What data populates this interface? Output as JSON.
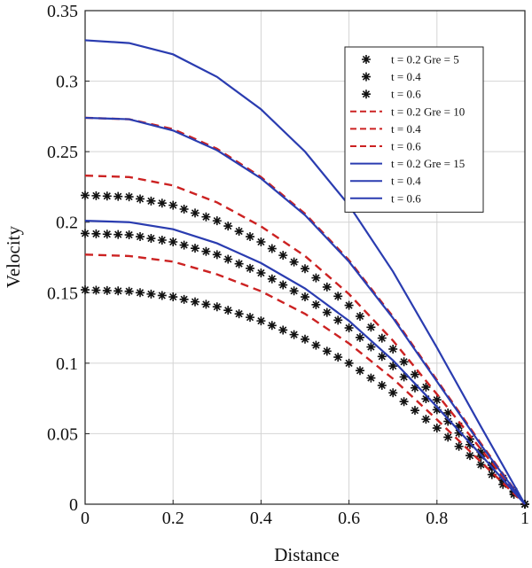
{
  "chart_data": {
    "type": "line",
    "xlabel": "Distance",
    "ylabel": "Velocity",
    "xlim": [
      0,
      1
    ],
    "ylim": [
      0,
      0.35
    ],
    "xticks": [
      "0",
      "0.2",
      "0.4",
      "0.6",
      "0.8",
      "1"
    ],
    "yticks": [
      "0",
      "0.05",
      "0.1",
      "0.15",
      "0.2",
      "0.25",
      "0.3",
      "0.35"
    ],
    "grid": true,
    "legend_position": "top-right",
    "colors": {
      "star": "#111111",
      "dashed": "#cc2222",
      "solid": "#2a3cb0"
    },
    "series": [
      {
        "name": "t = 0.2 Gre = 5",
        "style": "star",
        "x": [
          0,
          0.1,
          0.2,
          0.3,
          0.4,
          0.5,
          0.6,
          0.7,
          0.8,
          0.9,
          1.0
        ],
        "values": [
          0.219,
          0.218,
          0.212,
          0.201,
          0.186,
          0.167,
          0.141,
          0.11,
          0.074,
          0.037,
          0.0
        ]
      },
      {
        "name": "t = 0.4",
        "style": "star",
        "x": [
          0,
          0.1,
          0.2,
          0.3,
          0.4,
          0.5,
          0.6,
          0.7,
          0.8,
          0.9,
          1.0
        ],
        "values": [
          0.192,
          0.191,
          0.186,
          0.177,
          0.164,
          0.147,
          0.125,
          0.098,
          0.067,
          0.034,
          0.0
        ]
      },
      {
        "name": "t = 0.6",
        "style": "star",
        "x": [
          0,
          0.1,
          0.2,
          0.3,
          0.4,
          0.5,
          0.6,
          0.7,
          0.8,
          0.9,
          1.0
        ],
        "values": [
          0.152,
          0.151,
          0.147,
          0.14,
          0.13,
          0.117,
          0.1,
          0.079,
          0.054,
          0.028,
          0.0
        ]
      },
      {
        "name": "t = 0.2 Gre = 10",
        "style": "dashed",
        "x": [
          0,
          0.1,
          0.2,
          0.3,
          0.4,
          0.5,
          0.6,
          0.7,
          0.8,
          0.9,
          1.0
        ],
        "values": [
          0.233,
          0.232,
          0.226,
          0.214,
          0.197,
          0.176,
          0.149,
          0.116,
          0.078,
          0.039,
          0.0
        ]
      },
      {
        "name": "t = 0.4",
        "style": "dashed",
        "x": [
          0,
          0.1,
          0.2,
          0.3,
          0.4,
          0.5,
          0.6,
          0.7,
          0.8,
          0.9,
          1.0
        ],
        "values": [
          0.274,
          0.273,
          0.266,
          0.252,
          0.232,
          0.206,
          0.173,
          0.133,
          0.088,
          0.043,
          0.0
        ]
      },
      {
        "name": "t = 0.6",
        "style": "dashed",
        "x": [
          0,
          0.1,
          0.2,
          0.3,
          0.4,
          0.5,
          0.6,
          0.7,
          0.8,
          0.9,
          1.0
        ],
        "values": [
          0.177,
          0.176,
          0.172,
          0.163,
          0.151,
          0.135,
          0.114,
          0.089,
          0.06,
          0.03,
          0.0
        ]
      },
      {
        "name": "t = 0.2 Gre = 15",
        "style": "solid",
        "x": [
          0,
          0.1,
          0.2,
          0.3,
          0.4,
          0.5,
          0.6,
          0.7,
          0.8,
          0.9,
          1.0
        ],
        "values": [
          0.329,
          0.327,
          0.319,
          0.303,
          0.28,
          0.25,
          0.212,
          0.165,
          0.111,
          0.055,
          0.0
        ]
      },
      {
        "name": "t = 0.4",
        "style": "solid",
        "x": [
          0,
          0.1,
          0.2,
          0.3,
          0.4,
          0.5,
          0.6,
          0.7,
          0.8,
          0.9,
          1.0
        ],
        "values": [
          0.274,
          0.273,
          0.265,
          0.251,
          0.231,
          0.205,
          0.172,
          0.132,
          0.087,
          0.042,
          0.0
        ]
      },
      {
        "name": "t = 0.6",
        "style": "solid",
        "x": [
          0,
          0.1,
          0.2,
          0.3,
          0.4,
          0.5,
          0.6,
          0.7,
          0.8,
          0.9,
          1.0
        ],
        "values": [
          0.201,
          0.2,
          0.195,
          0.185,
          0.171,
          0.153,
          0.13,
          0.102,
          0.069,
          0.035,
          0.0
        ]
      }
    ]
  }
}
